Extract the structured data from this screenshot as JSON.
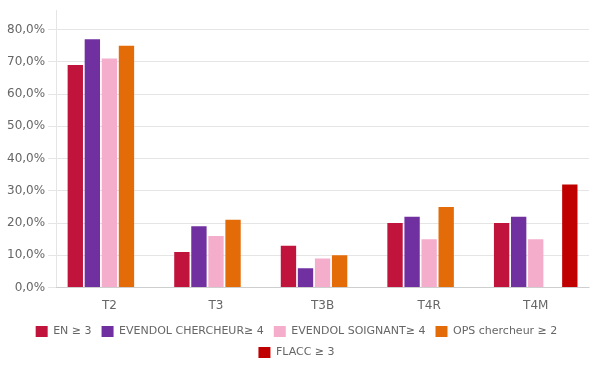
{
  "chart_data": {
    "type": "bar",
    "categories": [
      "T2",
      "T3",
      "T3B",
      "T4R",
      "T4M"
    ],
    "series": [
      {
        "name": "EN ≥ 3",
        "color": "#C0143C",
        "values": [
          0.69,
          0.11,
          0.13,
          0.2,
          0.2
        ]
      },
      {
        "name": "EVENDOL CHERCHEUR≥ 4",
        "color": "#7030A0",
        "values": [
          0.77,
          0.19,
          0.06,
          0.22,
          0.22
        ]
      },
      {
        "name": "EVENDOL SOIGNANT≥ 4",
        "color": "#F4AECC",
        "values": [
          0.71,
          0.16,
          0.09,
          0.15,
          0.15
        ]
      },
      {
        "name": "OPS chercheur ≥ 2",
        "color": "#E36C09",
        "values": [
          0.75,
          0.21,
          0.1,
          0.25,
          0.0
        ]
      },
      {
        "name": "FLACC ≥ 3",
        "color": "#C00000",
        "values": [
          0.0,
          0.0,
          0.0,
          0.0,
          0.32
        ]
      }
    ],
    "ylim": [
      0,
      0.86
    ],
    "yticks": [
      {
        "value": 0.0,
        "label": "0,0%"
      },
      {
        "value": 0.1,
        "label": "10,0%"
      },
      {
        "value": 0.2,
        "label": "20,0%"
      },
      {
        "value": 0.3,
        "label": "30,0%"
      },
      {
        "value": 0.4,
        "label": "40,0%"
      },
      {
        "value": 0.5,
        "label": "50,0%"
      },
      {
        "value": 0.6,
        "label": "60,0%"
      },
      {
        "value": 0.7,
        "label": "70,0%"
      },
      {
        "value": 0.8,
        "label": "80,0%"
      }
    ],
    "grid": true,
    "legend": "bottom"
  }
}
